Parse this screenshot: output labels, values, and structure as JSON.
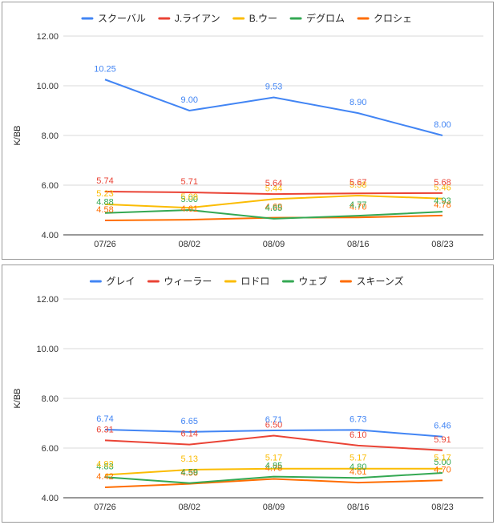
{
  "chart_data": [
    {
      "type": "line",
      "ylabel": "K/BB",
      "xlabel": "",
      "ylim": [
        4.0,
        12.0
      ],
      "yticks": [
        "4.00",
        "6.00",
        "8.00",
        "10.00",
        "12.00"
      ],
      "categories": [
        "07/26",
        "08/02",
        "08/09",
        "08/16",
        "08/23"
      ],
      "legend_position": "top",
      "grid": true,
      "series": [
        {
          "name": "スクーバル",
          "color": "#4285f4",
          "values": [
            10.25,
            9.0,
            9.53,
            8.9,
            8.0
          ]
        },
        {
          "name": "J.ライアン",
          "color": "#ea4335",
          "values": [
            5.74,
            5.71,
            5.64,
            5.67,
            5.68
          ]
        },
        {
          "name": "B.ウー",
          "color": "#fbbc04",
          "values": [
            5.23,
            5.09,
            5.44,
            5.58,
            5.46
          ]
        },
        {
          "name": "デグロム",
          "color": "#34a853",
          "values": [
            4.88,
            5.0,
            4.65,
            4.77,
            4.93
          ]
        },
        {
          "name": "クロシェ",
          "color": "#ff6d01",
          "values": [
            4.58,
            4.61,
            4.69,
            4.7,
            4.78
          ]
        }
      ]
    },
    {
      "type": "line",
      "ylabel": "K/BB",
      "xlabel": "",
      "ylim": [
        4.0,
        12.0
      ],
      "yticks": [
        "4.00",
        "6.00",
        "8.00",
        "10.00",
        "12.00"
      ],
      "categories": [
        "07/26",
        "08/02",
        "08/09",
        "08/16",
        "08/23"
      ],
      "legend_position": "top",
      "grid": true,
      "series": [
        {
          "name": "グレイ",
          "color": "#4285f4",
          "values": [
            6.74,
            6.65,
            6.71,
            6.73,
            6.46
          ]
        },
        {
          "name": "ウィーラー",
          "color": "#ea4335",
          "values": [
            6.31,
            6.14,
            6.5,
            6.1,
            5.91
          ]
        },
        {
          "name": "ロドロ",
          "color": "#fbbc04",
          "values": [
            4.92,
            5.13,
            5.17,
            5.17,
            5.17
          ]
        },
        {
          "name": "ウェブ",
          "color": "#34a853",
          "values": [
            4.83,
            4.59,
            4.85,
            4.8,
            5.0
          ]
        },
        {
          "name": "スキーンズ",
          "color": "#ff6d01",
          "values": [
            4.42,
            4.56,
            4.76,
            4.61,
            4.7
          ]
        }
      ]
    }
  ]
}
